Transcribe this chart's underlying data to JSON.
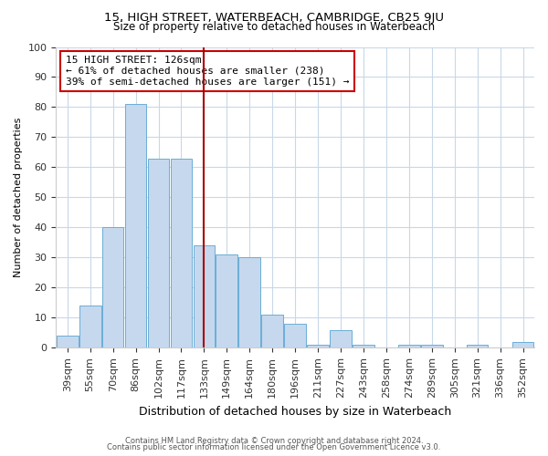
{
  "title1": "15, HIGH STREET, WATERBEACH, CAMBRIDGE, CB25 9JU",
  "title2": "Size of property relative to detached houses in Waterbeach",
  "xlabel": "Distribution of detached houses by size in Waterbeach",
  "ylabel": "Number of detached properties",
  "bin_labels": [
    "39sqm",
    "55sqm",
    "70sqm",
    "86sqm",
    "102sqm",
    "117sqm",
    "133sqm",
    "149sqm",
    "164sqm",
    "180sqm",
    "196sqm",
    "211sqm",
    "227sqm",
    "243sqm",
    "258sqm",
    "274sqm",
    "289sqm",
    "305sqm",
    "321sqm",
    "336sqm",
    "352sqm"
  ],
  "bar_values": [
    4,
    14,
    40,
    81,
    63,
    63,
    34,
    31,
    30,
    11,
    8,
    1,
    6,
    1,
    0,
    1,
    1,
    0,
    1,
    0,
    2
  ],
  "bar_color": "#c5d8ee",
  "bar_edge_color": "#6baed6",
  "vline_x": 6.0,
  "vline_color": "#aa0000",
  "annotation_line1": "15 HIGH STREET: 126sqm",
  "annotation_line2": "← 61% of detached houses are smaller (238)",
  "annotation_line3": "39% of semi-detached houses are larger (151) →",
  "annotation_box_edge": "#cc0000",
  "ylim": [
    0,
    100
  ],
  "yticks": [
    0,
    10,
    20,
    30,
    40,
    50,
    60,
    70,
    80,
    90,
    100
  ],
  "footnote1": "Contains HM Land Registry data © Crown copyright and database right 2024.",
  "footnote2": "Contains public sector information licensed under the Open Government Licence v3.0.",
  "background_color": "#ffffff",
  "grid_color": "#c8d8e8"
}
